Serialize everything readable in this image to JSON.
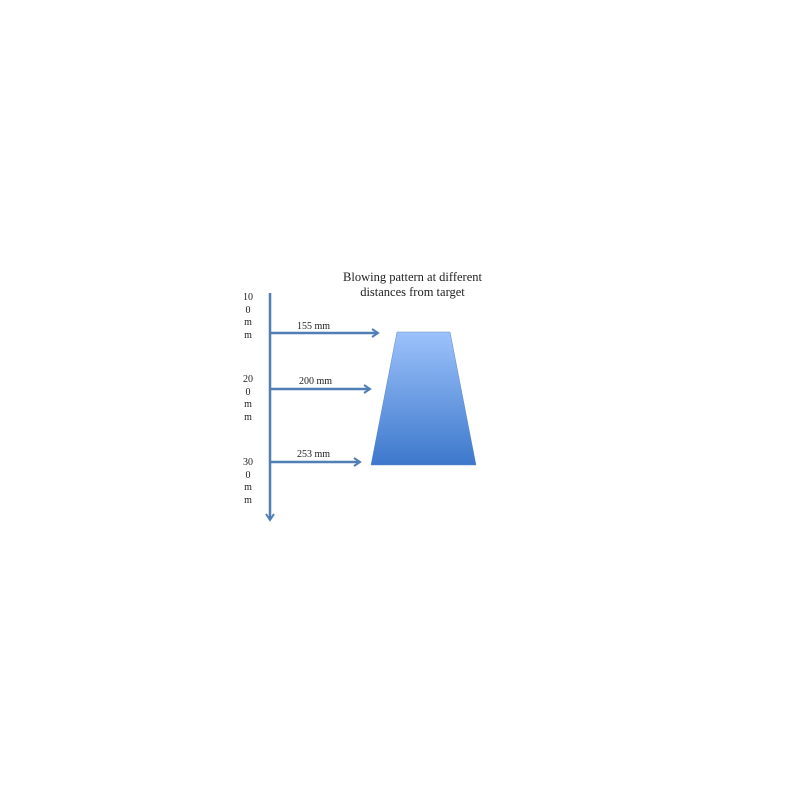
{
  "title": "Blowing pattern at different distances from target",
  "distance_labels": [
    "100mm",
    "200mm",
    "300mm"
  ],
  "arrow_labels": [
    "155 mm",
    "200 mm",
    "253 mm"
  ],
  "colors": {
    "axis": "#4f7fb4",
    "shape_top": "#9cc2fb",
    "shape_bottom": "#3d78cc"
  }
}
